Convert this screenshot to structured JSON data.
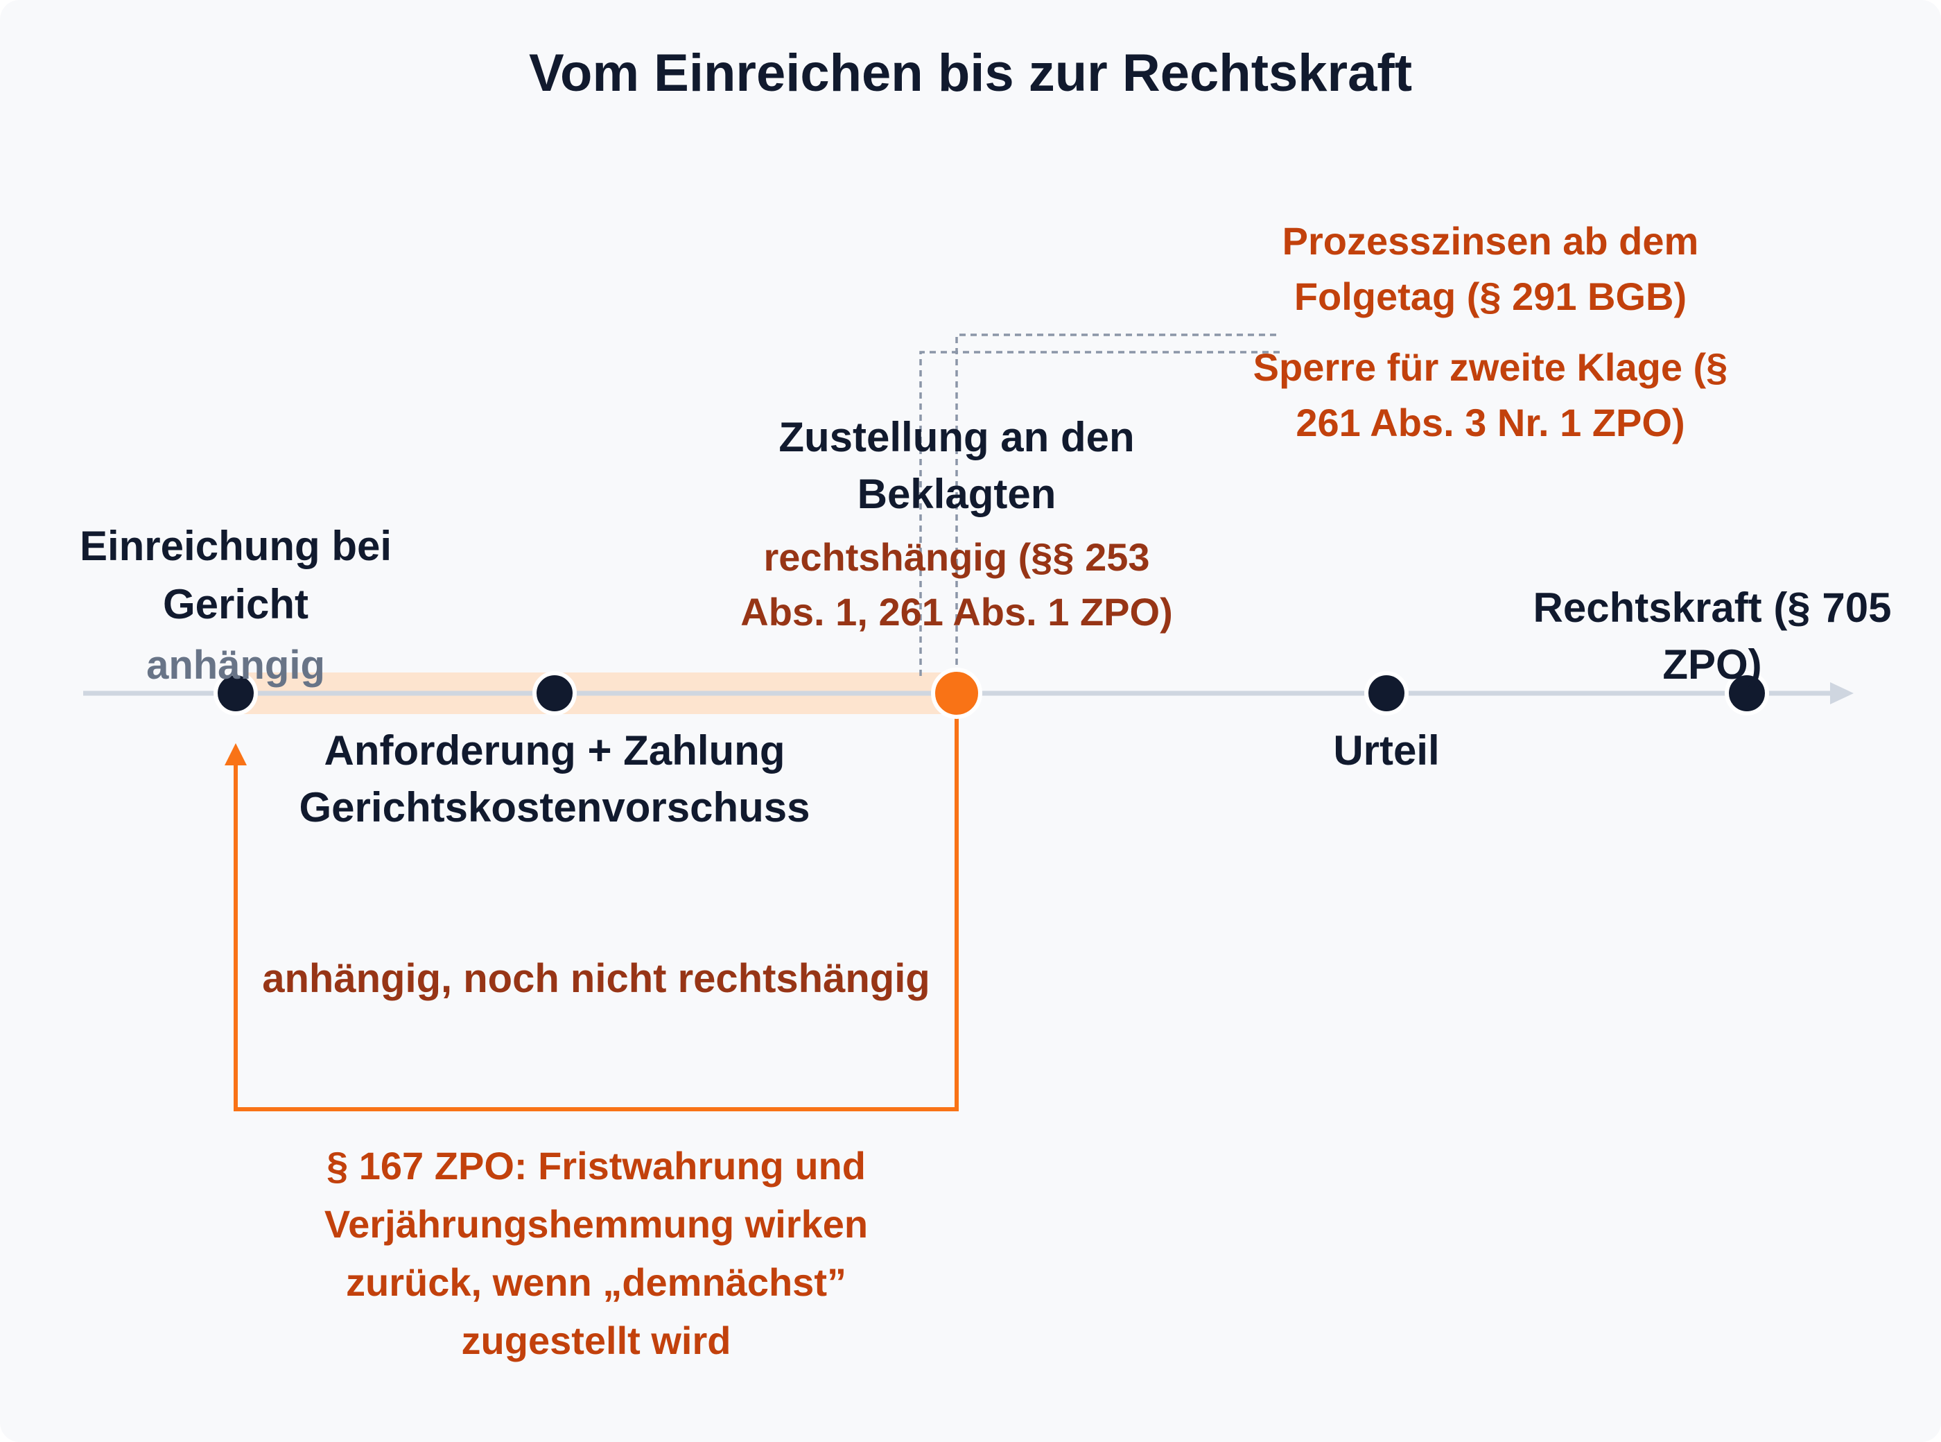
{
  "title": "Vom Einreichen bis zur Rechtskraft",
  "colors": {
    "background": "#f8f9fb",
    "text_dark": "#111a2e",
    "text_grey": "#687487",
    "text_rust": "#973516",
    "text_orange": "#c2410c",
    "accent_orange": "#f97316",
    "highlight_band": "#fde4cf",
    "axis": "#cfd6e0",
    "dotted": "#8b96a8"
  },
  "milestones": [
    {
      "id": "einreichung",
      "label": "Einreichung bei Gericht",
      "status": "anhängig"
    },
    {
      "id": "vorschuss",
      "label": "Anforderung + Zahlung Gerichtskostenvorschuss"
    },
    {
      "id": "zustellung",
      "label": "Zustellung an den Beklagten",
      "status": "rechtshängig (§§ 253 Abs. 1, 261 Abs. 1 ZPO)"
    },
    {
      "id": "urteil",
      "label": "Urteil"
    },
    {
      "id": "rechtskraft",
      "label": "Rechtskraft (§ 705 ZPO)"
    }
  ],
  "effects": [
    "Prozesszinsen ab dem Folgetag (§ 291 BGB)",
    "Sperre für zweite Klage (§ 261 Abs. 3 Nr. 1 ZPO)"
  ],
  "interval_label": "anhängig, noch nicht rechtshängig",
  "backdating_note": "§ 167 ZPO: Fristwahrung und Verjährungshemmung wirken zurück, wenn „demnächst” zugestellt wird"
}
